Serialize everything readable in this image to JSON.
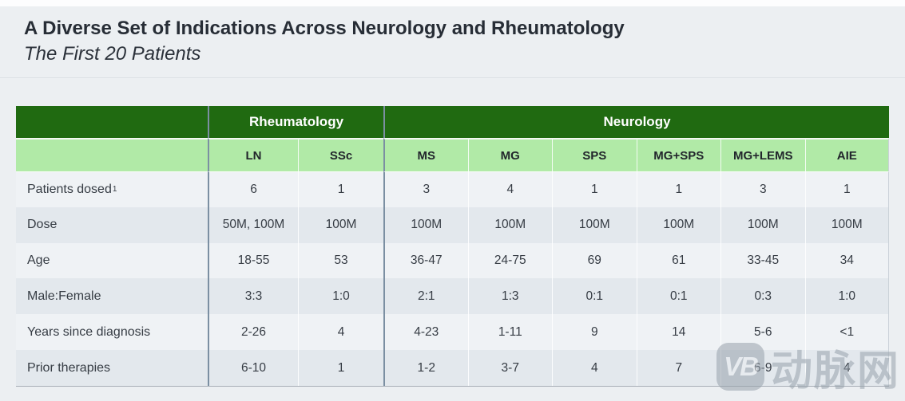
{
  "page": {
    "title": "A Diverse Set of Indications Across Neurology and Rheumatology",
    "subtitle": "The First 20 Patients"
  },
  "colors": {
    "header_dark_green": "#206A11",
    "header_light_green": "#B1EAA7",
    "group_divider_blue": "#7B8FA2",
    "row_light": "#EFF2F5",
    "row_dark": "#E3E8ED",
    "page_background": "#ECEFF2",
    "title_text": "#272D36"
  },
  "table": {
    "groups": [
      {
        "label": "Rheumatology",
        "span": 2
      },
      {
        "label": "Neurology",
        "span": 6
      }
    ],
    "columns": [
      "LN",
      "SSc",
      "MS",
      "MG",
      "SPS",
      "MG+SPS",
      "MG+LEMS",
      "AIE"
    ],
    "rows": [
      {
        "label": "Patients dosed",
        "footnote_marker": "1",
        "values": [
          "6",
          "1",
          "3",
          "4",
          "1",
          "1",
          "3",
          "1"
        ]
      },
      {
        "label": "Dose",
        "values": [
          "50M, 100M",
          "100M",
          "100M",
          "100M",
          "100M",
          "100M",
          "100M",
          "100M"
        ]
      },
      {
        "label": "Age",
        "values": [
          "18-55",
          "53",
          "36-47",
          "24-75",
          "69",
          "61",
          "33-45",
          "34"
        ]
      },
      {
        "label": "Male:Female",
        "values": [
          "3:3",
          "1:0",
          "2:1",
          "1:3",
          "0:1",
          "0:1",
          "0:3",
          "1:0"
        ]
      },
      {
        "label": "Years since diagnosis",
        "values": [
          "2-26",
          "4",
          "4-23",
          "1-11",
          "9",
          "14",
          "5-6",
          "<1"
        ]
      },
      {
        "label": "Prior therapies",
        "values": [
          "6-10",
          "1",
          "1-2",
          "3-7",
          "4",
          "7",
          "6-9",
          "4"
        ]
      }
    ]
  },
  "watermark": {
    "logo": "VB",
    "text": "动脉网"
  }
}
